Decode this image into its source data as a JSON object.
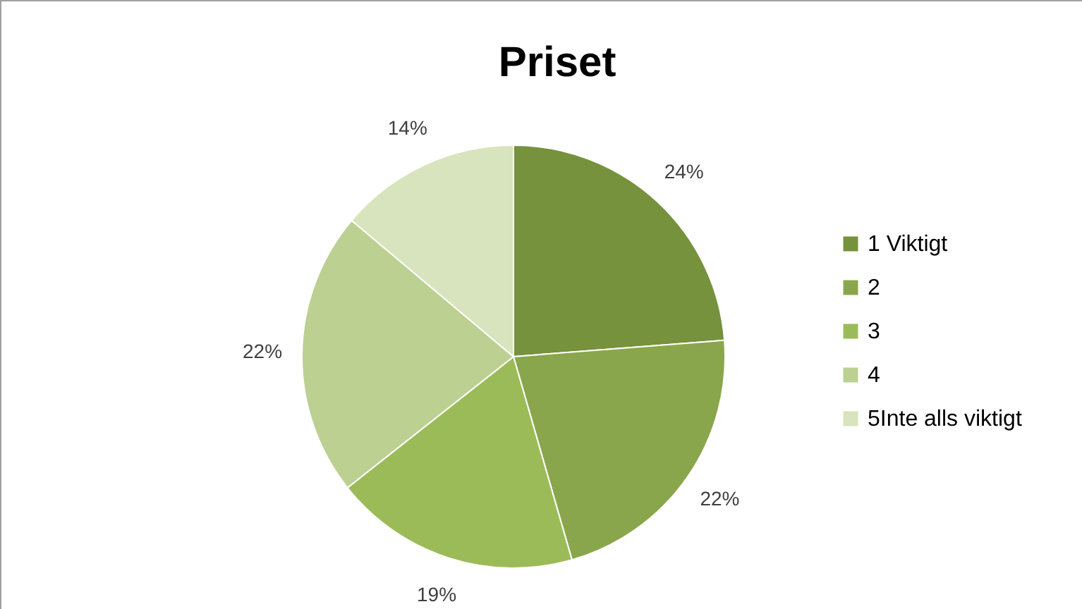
{
  "chart_data": {
    "type": "pie",
    "title": "Priset",
    "categories": [
      "1 Viktigt",
      "2",
      "3",
      "4",
      "5Inte alls viktigt"
    ],
    "values": [
      24,
      22,
      19,
      22,
      14
    ],
    "colors": [
      "#76923c",
      "#8aa64c",
      "#9bbb59",
      "#bcd092",
      "#d7e4bd"
    ],
    "value_labels": [
      "24%",
      "22%",
      "19%",
      "22%",
      "14%"
    ],
    "legend": "right"
  }
}
